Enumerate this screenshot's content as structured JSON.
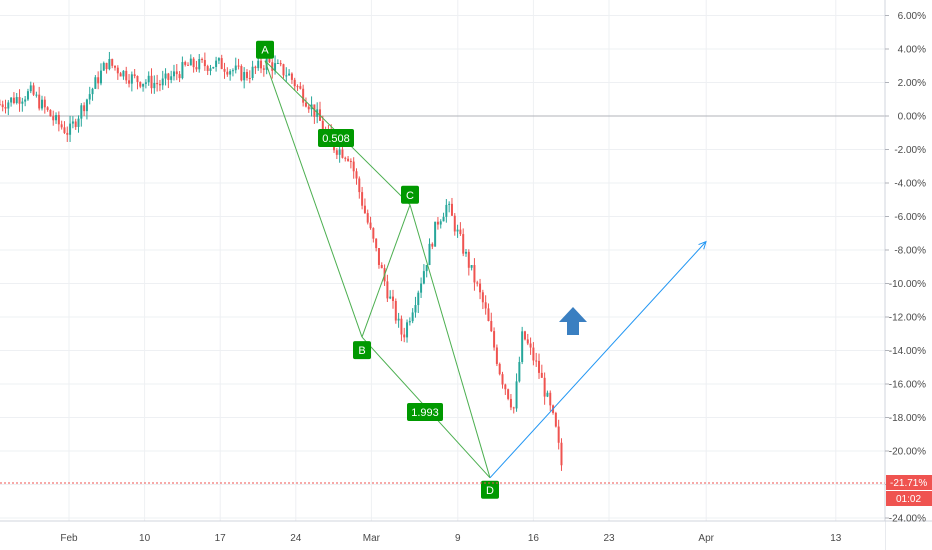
{
  "chart_data": {
    "type": "candlestick",
    "x_ticks": [
      "Feb",
      "10",
      "17",
      "24",
      "Mar",
      "9",
      "16",
      "23",
      "Apr",
      "13"
    ],
    "y_ticks": [
      "6.00%",
      "4.00%",
      "2.00%",
      "0.00%",
      "-2.00%",
      "-4.00%",
      "-6.00%",
      "-8.00%",
      "-10.00%",
      "-12.00%",
      "-14.00%",
      "-16.00%",
      "-18.00%",
      "-20.00%",
      "-22.00%",
      "-24.00%"
    ],
    "ylim": [
      -24.5,
      6.8
    ],
    "baseline_value": 0,
    "pattern": {
      "points": [
        {
          "label": "A",
          "y": 3.3
        },
        {
          "label": "B",
          "y": -13.2
        },
        {
          "label": "C",
          "y": -5.3
        },
        {
          "label": "D",
          "y": -21.6
        }
      ],
      "ratios": [
        "0.508",
        "1.993"
      ]
    },
    "projection": {
      "from_y": -21.6,
      "to_y": -7.5
    },
    "current_value_label": "-21.71%",
    "countdown_label": "01:02",
    "colors": {
      "up": "#26a69a",
      "down": "#ef5350",
      "pattern": "#4caf50",
      "label_bg": "#009900",
      "projection": "#2196f3",
      "arrow": "#3a7fc1",
      "price_line": "#ef5350",
      "grid": "#eef0f3"
    },
    "arrow_icon": "up-arrow-icon"
  }
}
